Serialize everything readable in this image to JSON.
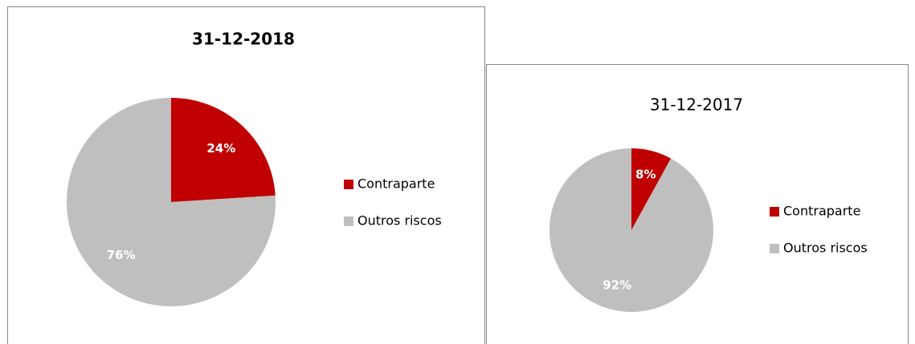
{
  "chart_data": [
    {
      "type": "pie",
      "title": "31-12-2018",
      "categories": [
        "Contraparte",
        "Outros riscos"
      ],
      "values": [
        24,
        76
      ],
      "value_labels": [
        "24%",
        "76%"
      ],
      "colors": [
        "#c00000",
        "#bfbfbf"
      ],
      "legend": "right"
    },
    {
      "type": "pie",
      "title": "31-12-2017",
      "categories": [
        "Contraparte",
        "Outros riscos"
      ],
      "values": [
        8,
        92
      ],
      "value_labels": [
        "8%",
        "92%"
      ],
      "colors": [
        "#c00000",
        "#bfbfbf"
      ],
      "legend": "right"
    }
  ]
}
